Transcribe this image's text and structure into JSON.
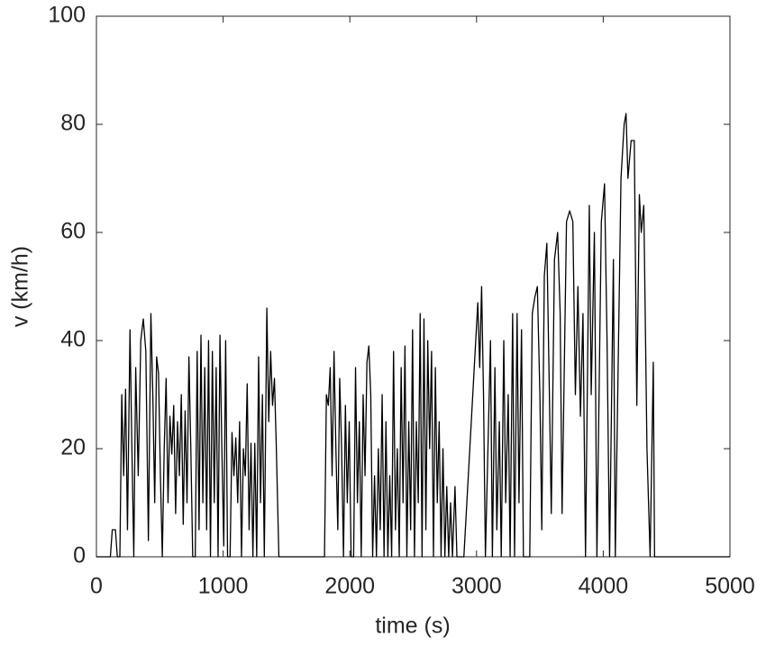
{
  "chart_data": {
    "type": "line",
    "x_label": "time (s)",
    "y_label": "v (km/h)",
    "color": "#000000",
    "xlim": [
      0,
      5000
    ],
    "xticks": [
      0,
      1000,
      2000,
      3000,
      4000,
      5000
    ],
    "ylim": [
      0,
      100
    ],
    "yticks": [
      0,
      20,
      40,
      60,
      80,
      100
    ],
    "grid": false,
    "x": [
      0,
      110,
      125,
      150,
      165,
      185,
      200,
      215,
      230,
      245,
      265,
      280,
      295,
      310,
      330,
      350,
      370,
      390,
      410,
      430,
      445,
      460,
      475,
      490,
      505,
      520,
      535,
      550,
      565,
      580,
      595,
      610,
      625,
      640,
      655,
      670,
      685,
      700,
      715,
      730,
      745,
      760,
      780,
      795,
      810,
      825,
      840,
      855,
      870,
      885,
      900,
      915,
      930,
      945,
      960,
      975,
      990,
      1005,
      1020,
      1035,
      1055,
      1070,
      1085,
      1100,
      1115,
      1130,
      1145,
      1160,
      1175,
      1190,
      1205,
      1220,
      1235,
      1250,
      1265,
      1280,
      1295,
      1310,
      1325,
      1345,
      1360,
      1375,
      1390,
      1405,
      1420,
      1440,
      1800,
      1815,
      1830,
      1845,
      1860,
      1875,
      1890,
      1905,
      1920,
      1935,
      1950,
      1965,
      1980,
      1995,
      2010,
      2030,
      2045,
      2060,
      2075,
      2090,
      2105,
      2120,
      2135,
      2150,
      2165,
      2180,
      2195,
      2210,
      2225,
      2240,
      2255,
      2270,
      2285,
      2300,
      2315,
      2330,
      2345,
      2360,
      2375,
      2390,
      2405,
      2420,
      2435,
      2450,
      2465,
      2480,
      2495,
      2510,
      2525,
      2540,
      2555,
      2570,
      2585,
      2600,
      2615,
      2630,
      2645,
      2660,
      2675,
      2690,
      2705,
      2720,
      2735,
      2750,
      2765,
      2780,
      2795,
      2810,
      2830,
      2845,
      2860,
      2900,
      3010,
      3025,
      3040,
      3055,
      3070,
      3090,
      3110,
      3125,
      3145,
      3160,
      3180,
      3195,
      3215,
      3230,
      3250,
      3265,
      3285,
      3300,
      3320,
      3335,
      3355,
      3370,
      3420,
      3440,
      3460,
      3480,
      3500,
      3515,
      3535,
      3555,
      3575,
      3590,
      3615,
      3640,
      3660,
      3675,
      3710,
      3735,
      3760,
      3780,
      3800,
      3820,
      3840,
      3860,
      3890,
      3905,
      3930,
      3950,
      3985,
      4010,
      4030,
      4050,
      4080,
      4095,
      4140,
      4165,
      4180,
      4195,
      4220,
      4245,
      4265,
      4285,
      4300,
      4320,
      4345,
      4370,
      4395,
      4405,
      5000
    ],
    "values": [
      0,
      0,
      5,
      5,
      0,
      0,
      30,
      15,
      31,
      5,
      42,
      20,
      0,
      35,
      15,
      40,
      44,
      38,
      3,
      45,
      30,
      10,
      37,
      34,
      15,
      0,
      20,
      33,
      10,
      26,
      19,
      28,
      8,
      25,
      15,
      30,
      6,
      27,
      10,
      37,
      20,
      0,
      0,
      38,
      5,
      41,
      10,
      35,
      5,
      40,
      0,
      38,
      10,
      35,
      0,
      41,
      20,
      2,
      40,
      0,
      0,
      23,
      15,
      22,
      10,
      25,
      0,
      20,
      15,
      32,
      5,
      21,
      0,
      21,
      0,
      37,
      10,
      30,
      0,
      46,
      25,
      38,
      28,
      33,
      20,
      0,
      0,
      30,
      28,
      35,
      15,
      38,
      20,
      5,
      33,
      20,
      0,
      28,
      10,
      25,
      0,
      0,
      35,
      10,
      25,
      0,
      30,
      15,
      36,
      39,
      30,
      0,
      15,
      0,
      20,
      5,
      30,
      0,
      25,
      0,
      15,
      0,
      38,
      5,
      20,
      0,
      35,
      10,
      39,
      0,
      25,
      5,
      42,
      0,
      25,
      10,
      45,
      0,
      44,
      5,
      40,
      20,
      38,
      0,
      35,
      10,
      25,
      0,
      20,
      0,
      13,
      0,
      10,
      0,
      13,
      0,
      0,
      0,
      47,
      35,
      50,
      30,
      0,
      20,
      40,
      0,
      35,
      5,
      25,
      0,
      40,
      10,
      30,
      0,
      45,
      0,
      45,
      10,
      42,
      0,
      0,
      45,
      48,
      50,
      30,
      5,
      52,
      58,
      30,
      8,
      55,
      60,
      45,
      8,
      62,
      64,
      62,
      30,
      50,
      26,
      45,
      0,
      65,
      30,
      60,
      0,
      62,
      69,
      40,
      0,
      55,
      0,
      70,
      80,
      82,
      70,
      77,
      77,
      28,
      67,
      60,
      65,
      20,
      0,
      36,
      0,
      0
    ]
  }
}
